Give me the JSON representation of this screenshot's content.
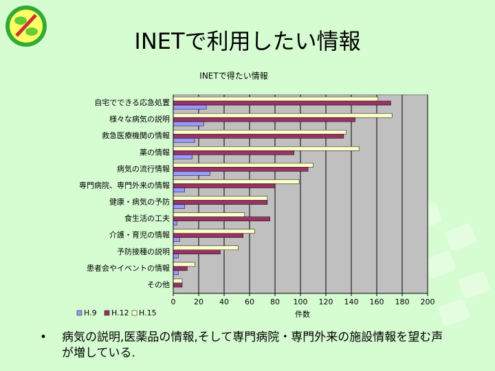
{
  "slide": {
    "title": "INETで利用したい情報",
    "bullets": [
      "病気の説明,医薬品の情報,そして専門病院・専門外来の施設情報を望む声が増している."
    ]
  },
  "chart_data": {
    "type": "hbar",
    "title": "INETで得たい情報",
    "x_label": "件数",
    "categories": [
      "自宅でできる応急処置",
      "様々な病気の説明",
      "救急医療機関の情報",
      "薬の情報",
      "病気の流行情報",
      "専門病院、専門外来の情報",
      "健康・病気の予防",
      "食生活の工夫",
      "介護・育児の情報",
      "予防接種の説明",
      "患者会やイベントの情報",
      "その他"
    ],
    "series": [
      {
        "name": "H.9",
        "color": "#9999ff",
        "values": [
          26,
          24,
          17,
          15,
          29,
          9,
          9,
          3,
          5,
          4,
          4,
          0
        ]
      },
      {
        "name": "H.12",
        "color": "#993366",
        "values": [
          171,
          143,
          134,
          95,
          106,
          80,
          74,
          76,
          55,
          37,
          11,
          7
        ]
      },
      {
        "name": "H.15",
        "color": "#ffffcc",
        "values": [
          161,
          172,
          136,
          146,
          110,
          99,
          74,
          56,
          64,
          51,
          17,
          7
        ]
      }
    ],
    "xlim": [
      0,
      200
    ],
    "xticks": [
      0,
      20,
      40,
      60,
      80,
      100,
      120,
      140,
      160,
      180,
      200
    ],
    "grid": true,
    "legend": "bottom-left"
  }
}
